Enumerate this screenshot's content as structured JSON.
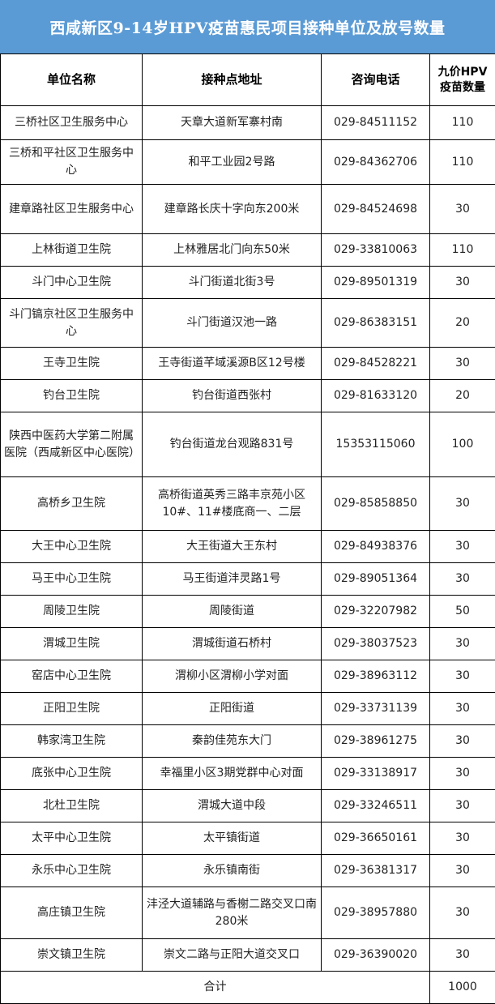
{
  "title": "西咸新区9-14岁HPV疫苗惠民项目接种单位及放号数量",
  "colors": {
    "title_bg": "#5b9bd5"
  },
  "columns": [
    "单位名称",
    "接种点地址",
    "咨询电话",
    "九价HPV疫苗数量"
  ],
  "rows": [
    {
      "name": "三桥社区卫生服务中心",
      "address": "天章大道新军寨村南",
      "phone": "029-84511152",
      "qty": "110"
    },
    {
      "name": "三桥和平社区卫生服务中心",
      "address": "和平工业园2号路",
      "phone": "029-84362706",
      "qty": "110"
    },
    {
      "name": "建章路社区卫生服务中心",
      "address": "建章路长庆十字向东200米",
      "phone": "029-84524698",
      "qty": "30"
    },
    {
      "name": "上林街道卫生院",
      "address": "上林雅居北门向东50米",
      "phone": "029-33810063",
      "qty": "110"
    },
    {
      "name": "斗门中心卫生院",
      "address": "斗门街道北街3号",
      "phone": "029-89501319",
      "qty": "30"
    },
    {
      "name": "斗门镐京社区卫生服务中心",
      "address": "斗门街道汉池一路",
      "phone": "029-86383151",
      "qty": "20"
    },
    {
      "name": "王寺卫生院",
      "address": "王寺街道芊域溪源B区12号楼",
      "phone": "029-84528221",
      "qty": "30"
    },
    {
      "name": "钓台卫生院",
      "address": "钓台街道西张村",
      "phone": "029-81633120",
      "qty": "20"
    },
    {
      "name": "陕西中医药大学第二附属医院（西咸新区中心医院）",
      "address": "钓台街道龙台观路831号",
      "phone": "15353115060",
      "qty": "100"
    },
    {
      "name": "高桥乡卫生院",
      "address": "高桥街道英秀三路丰京苑小区10#、11#楼底商一、二层",
      "phone": "029-85858850",
      "qty": "30"
    },
    {
      "name": "大王中心卫生院",
      "address": "大王街道大王东村",
      "phone": "029-84938376",
      "qty": "30"
    },
    {
      "name": "马王中心卫生院",
      "address": "马王街道沣灵路1号",
      "phone": "029-89051364",
      "qty": "30"
    },
    {
      "name": "周陵卫生院",
      "address": "周陵街道",
      "phone": "029-32207982",
      "qty": "50"
    },
    {
      "name": "渭城卫生院",
      "address": "渭城街道石桥村",
      "phone": "029-38037523",
      "qty": "30"
    },
    {
      "name": "窑店中心卫生院",
      "address": "渭柳小区渭柳小学对面",
      "phone": "029-38963112",
      "qty": "30"
    },
    {
      "name": "正阳卫生院",
      "address": "正阳街道",
      "phone": "029-33731139",
      "qty": "30"
    },
    {
      "name": "韩家湾卫生院",
      "address": "秦韵佳苑东大门",
      "phone": "029-38961275",
      "qty": "30"
    },
    {
      "name": "底张中心卫生院",
      "address": "幸福里小区3期党群中心对面",
      "phone": "029-33138917",
      "qty": "30"
    },
    {
      "name": "北杜卫生院",
      "address": "渭城大道中段",
      "phone": "029-33246511",
      "qty": "30"
    },
    {
      "name": "太平中心卫生院",
      "address": "太平镇街道",
      "phone": "029-36650161",
      "qty": "30"
    },
    {
      "name": "永乐中心卫生院",
      "address": "永乐镇南街",
      "phone": "029-36381317",
      "qty": "30"
    },
    {
      "name": "高庄镇卫生院",
      "address": "沣泾大道辅路与香榭二路交叉口南280米",
      "phone": "029-38957880",
      "qty": "30"
    },
    {
      "name": "崇文镇卫生院",
      "address": "崇文二路与正阳大道交叉口",
      "phone": "029-36390020",
      "qty": "30"
    }
  ],
  "total": {
    "label": "合计",
    "qty": "1000"
  }
}
